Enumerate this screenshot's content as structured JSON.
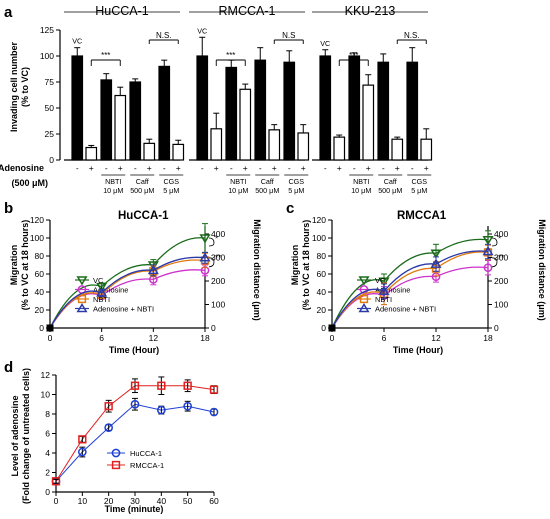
{
  "panel_letters": [
    "a",
    "b",
    "c",
    "d"
  ],
  "chart_data": [
    {
      "type": "bar",
      "panel": "a",
      "ylabel_line1": "Invading cell number",
      "ylabel_line2": "(% to VC)",
      "ylim": [
        0,
        125
      ],
      "yticks": [
        0,
        25,
        50,
        75,
        100,
        125
      ],
      "adenosine_row_label": "Adenosine",
      "adenosine_conc_label": "(500 μM)",
      "adenosine_signs": [
        "-",
        "+",
        "-",
        "+",
        "-",
        "+",
        "-",
        "+"
      ],
      "group_treatments": [
        {
          "name": "NBTI",
          "dose": "10 μM"
        },
        {
          "name": "Caff",
          "dose": "500 μM"
        },
        {
          "name": "CGS",
          "dose": "5 μM"
        }
      ],
      "vc_label": "VC",
      "groups": [
        {
          "name": "HuCCA-1",
          "values": [
            100,
            12,
            77,
            62,
            75,
            16,
            90,
            15
          ],
          "errors": [
            8,
            2,
            6,
            8,
            3,
            4,
            6,
            4
          ],
          "significance": [
            {
              "label": "***",
              "from": 1,
              "to": 3
            },
            {
              "label": "N.S.",
              "from": 5,
              "to": 7
            }
          ]
        },
        {
          "name": "RMCCA-1",
          "values": [
            100,
            30,
            89,
            68,
            96,
            29,
            94,
            26
          ],
          "errors": [
            18,
            15,
            7,
            5,
            12,
            5,
            11,
            8
          ],
          "significance": [
            {
              "label": "***",
              "from": 1,
              "to": 3
            },
            {
              "label": "N.S",
              "from": 5,
              "to": 7
            }
          ]
        },
        {
          "name": "KKU-213",
          "values": [
            100,
            22,
            100,
            72,
            94,
            20,
            94,
            20
          ],
          "errors": [
            6,
            2,
            3,
            10,
            8,
            2,
            14,
            10
          ],
          "significance": [
            {
              "label": "***",
              "from": 1,
              "to": 3
            },
            {
              "label": "N.S.",
              "from": 5,
              "to": 7
            }
          ]
        }
      ],
      "colors": {
        "filled": "#000000",
        "open": "#ffffff"
      }
    },
    {
      "type": "line",
      "panel": "b",
      "title": "HuCCA-1",
      "xlabel": "Time (Hour)",
      "ylabel_line1": "Migration",
      "ylabel_line2": "(% to VC at 18 hours)",
      "ylabel_right": "Migration distance (μm)",
      "x": [
        0,
        6,
        12,
        18
      ],
      "xlim": [
        0,
        18
      ],
      "ylim": [
        0,
        120
      ],
      "yticks": [
        0,
        20,
        40,
        60,
        80,
        100,
        120
      ],
      "y2ticks": [
        0,
        100,
        200,
        300,
        400
      ],
      "series": [
        {
          "name": "VC",
          "values": [
            0,
            46,
            70,
            100
          ],
          "errors": [
            0,
            4,
            6,
            16
          ],
          "color": "#1a6b1a",
          "marker": "triangle-down"
        },
        {
          "name": "Adenosine",
          "values": [
            0,
            36,
            54,
            64
          ],
          "errors": [
            0,
            4,
            6,
            6
          ],
          "color": "#cc33cc",
          "marker": "circle"
        },
        {
          "name": "NBTI",
          "values": [
            0,
            37,
            63,
            75
          ],
          "errors": [
            0,
            4,
            6,
            8
          ],
          "color": "#e07a10",
          "marker": "square"
        },
        {
          "name": "Adenosine + NBTI",
          "values": [
            0,
            39,
            64,
            78
          ],
          "errors": [
            0,
            4,
            6,
            6
          ],
          "color": "#2a3aa8",
          "marker": "triangle-up"
        }
      ],
      "significance": [
        "*",
        "**"
      ]
    },
    {
      "type": "line",
      "panel": "c",
      "title": "RMCCA1",
      "xlabel": "Time (Hour)",
      "ylabel_line1": "Migration",
      "ylabel_line2": "(% to VC at 18 hours)",
      "ylabel_right": "Migration distance (μm)",
      "x": [
        0,
        6,
        12,
        18
      ],
      "xlim": [
        0,
        18
      ],
      "ylim": [
        0,
        120
      ],
      "yticks": [
        0,
        20,
        40,
        60,
        80,
        100,
        120
      ],
      "y2ticks": [
        0,
        100,
        200,
        300,
        400
      ],
      "series": [
        {
          "name": "VC",
          "values": [
            0,
            52,
            83,
            98
          ],
          "errors": [
            0,
            8,
            10,
            10
          ],
          "color": "#1a6b1a",
          "marker": "triangle-down"
        },
        {
          "name": "Adenosine",
          "values": [
            0,
            36,
            57,
            67
          ],
          "errors": [
            0,
            10,
            6,
            8
          ],
          "color": "#cc33cc",
          "marker": "circle"
        },
        {
          "name": "NBTI",
          "values": [
            0,
            38,
            66,
            84
          ],
          "errors": [
            0,
            12,
            8,
            8
          ],
          "color": "#e07a10",
          "marker": "square"
        },
        {
          "name": "Adenosine + NBTI",
          "values": [
            0,
            41,
            71,
            85
          ],
          "errors": [
            0,
            8,
            8,
            8
          ],
          "color": "#2a3aa8",
          "marker": "triangle-up"
        }
      ],
      "significance": [
        "*",
        "**"
      ]
    },
    {
      "type": "line",
      "panel": "d",
      "ylabel_line1": "Level of adenosine",
      "ylabel_line2": "(Fold change of untreated cells)",
      "xlabel": "Time (minute)",
      "x": [
        0,
        10,
        20,
        30,
        40,
        50,
        60
      ],
      "xlim": [
        0,
        60
      ],
      "ylim": [
        0,
        12
      ],
      "yticks": [
        0,
        2,
        4,
        6,
        8,
        10,
        12
      ],
      "xticks": [
        0,
        10,
        20,
        30,
        40,
        50,
        60
      ],
      "series": [
        {
          "name": "HuCCA-1",
          "values": [
            1.1,
            4.1,
            6.6,
            9.0,
            8.4,
            8.8,
            8.2
          ],
          "errors": [
            0.2,
            0.5,
            0.3,
            0.6,
            0.4,
            0.5,
            0.3
          ],
          "color": "#1f3fd6",
          "marker": "circle"
        },
        {
          "name": "RMCCA-1",
          "values": [
            1.1,
            5.4,
            8.8,
            10.9,
            10.9,
            10.9,
            10.5
          ],
          "errors": [
            0.2,
            0.3,
            0.6,
            0.7,
            0.9,
            0.6,
            0.4
          ],
          "color": "#e02020",
          "marker": "square"
        }
      ],
      "legend_position": "bottom-right"
    }
  ]
}
